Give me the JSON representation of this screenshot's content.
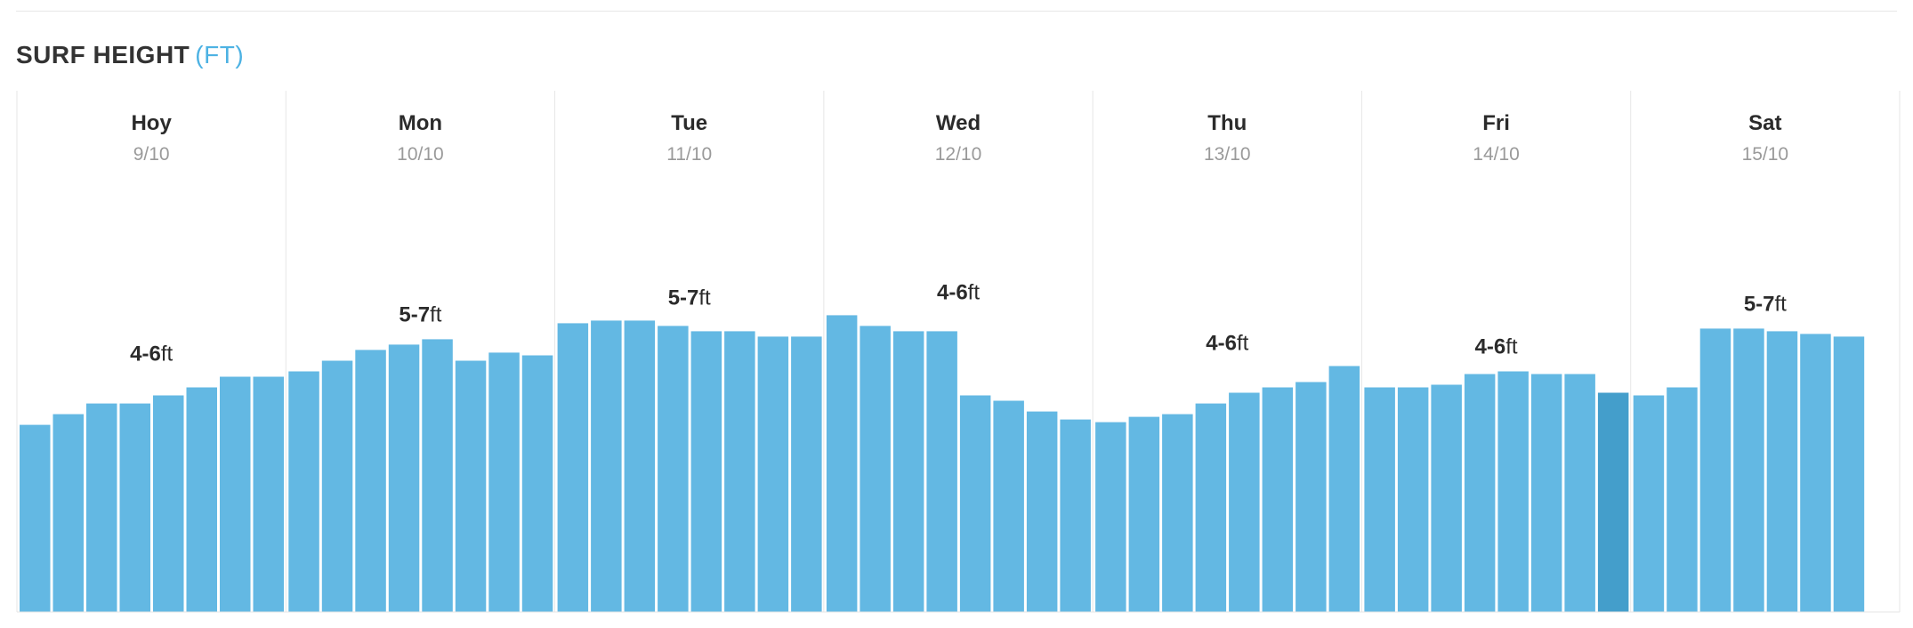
{
  "header": {
    "title": "SURF HEIGHT",
    "unit": "(FT)"
  },
  "colors": {
    "bar": "#63b8e3",
    "bar_highlight": "#449ecb",
    "divider": "#e6e6e6",
    "title_unit": "#4db2e3"
  },
  "chart_data": {
    "type": "bar",
    "title": "SURF HEIGHT",
    "ylabel": "(FT)",
    "ylim": [
      0,
      10.5
    ],
    "grid": false,
    "legend": "none",
    "days": [
      {
        "name": "Hoy",
        "date": "9/10",
        "range": {
          "text": "4-6",
          "unit": "ft"
        },
        "values": [
          3.5,
          3.7,
          3.9,
          3.9,
          4.05,
          4.2,
          4.4,
          4.4
        ]
      },
      {
        "name": "Mon",
        "date": "10/10",
        "range": {
          "text": "5-7",
          "unit": "ft"
        },
        "values": [
          4.5,
          4.7,
          4.9,
          5.0,
          5.1,
          4.7,
          4.85,
          4.8
        ]
      },
      {
        "name": "Tue",
        "date": "11/10",
        "range": {
          "text": "5-7",
          "unit": "ft"
        },
        "values": [
          5.4,
          5.45,
          5.45,
          5.35,
          5.25,
          5.25,
          5.15,
          5.15
        ]
      },
      {
        "name": "Wed",
        "date": "12/10",
        "range": {
          "text": "4-6",
          "unit": "ft"
        },
        "values": [
          5.55,
          5.35,
          5.25,
          5.25,
          4.05,
          3.95,
          3.75,
          3.6
        ]
      },
      {
        "name": "Thu",
        "date": "13/10",
        "range": {
          "text": "4-6",
          "unit": "ft"
        },
        "values": [
          3.55,
          3.65,
          3.7,
          3.9,
          4.1,
          4.2,
          4.3,
          4.6
        ]
      },
      {
        "name": "Fri",
        "date": "14/10",
        "range": {
          "text": "4-6",
          "unit": "ft"
        },
        "values": [
          4.2,
          4.2,
          4.25,
          4.45,
          4.5,
          4.45,
          4.45,
          4.1
        ]
      },
      {
        "name": "Sat",
        "date": "15/10",
        "range": {
          "text": "5-7",
          "unit": "ft"
        },
        "values": [
          4.05,
          4.2,
          5.3,
          5.3,
          5.25,
          5.2,
          5.15
        ]
      }
    ],
    "highlight": {
      "day": 5,
      "bar": 7
    }
  }
}
